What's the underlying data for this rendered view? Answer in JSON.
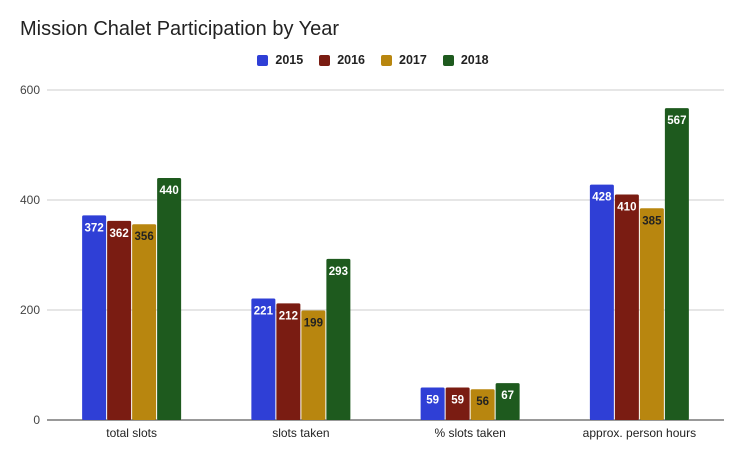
{
  "chart_data": {
    "type": "bar",
    "title": "Mission Chalet Participation by Year",
    "categories": [
      "total slots",
      "slots taken",
      "% slots taken",
      "approx. person hours"
    ],
    "series": [
      {
        "name": "2015",
        "color": "#2f3fd6",
        "values": [
          372,
          221,
          59,
          428
        ]
      },
      {
        "name": "2016",
        "color": "#7a1c12",
        "values": [
          362,
          212,
          59,
          410
        ]
      },
      {
        "name": "2017",
        "color": "#b8860f",
        "values": [
          356,
          199,
          56,
          385
        ]
      },
      {
        "name": "2018",
        "color": "#1e5a1e",
        "values": [
          440,
          293,
          67,
          567
        ]
      }
    ],
    "label_colors": [
      "#ffffff",
      "#ffffff",
      "#222222",
      "#ffffff"
    ],
    "yticks": [
      0,
      200,
      400,
      600
    ],
    "ylim": [
      0,
      600
    ],
    "grid": true,
    "legend_position": "top-center"
  }
}
